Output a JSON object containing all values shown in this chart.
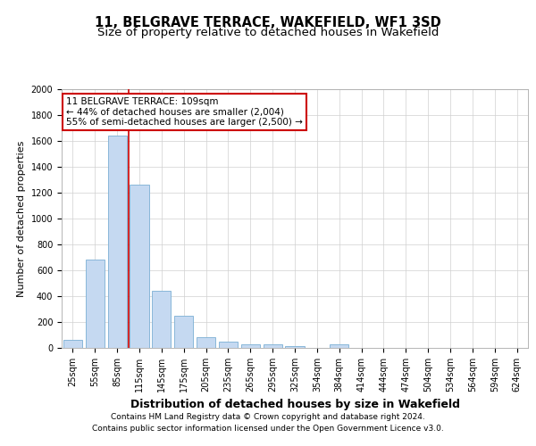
{
  "title": "11, BELGRAVE TERRACE, WAKEFIELD, WF1 3SD",
  "subtitle": "Size of property relative to detached houses in Wakefield",
  "xlabel": "Distribution of detached houses by size in Wakefield",
  "ylabel": "Number of detached properties",
  "categories": [
    "25sqm",
    "55sqm",
    "85sqm",
    "115sqm",
    "145sqm",
    "175sqm",
    "205sqm",
    "235sqm",
    "265sqm",
    "295sqm",
    "325sqm",
    "354sqm",
    "384sqm",
    "414sqm",
    "444sqm",
    "474sqm",
    "504sqm",
    "534sqm",
    "564sqm",
    "594sqm",
    "624sqm"
  ],
  "values": [
    60,
    680,
    1640,
    1260,
    440,
    250,
    80,
    45,
    30,
    25,
    15,
    0,
    25,
    0,
    0,
    0,
    0,
    0,
    0,
    0,
    0
  ],
  "bar_color": "#c5d9f1",
  "bar_edgecolor": "#7bafd4",
  "vline_color": "#cc0000",
  "vline_x_index": 2.5,
  "annotation_text": "11 BELGRAVE TERRACE: 109sqm\n← 44% of detached houses are smaller (2,004)\n55% of semi-detached houses are larger (2,500) →",
  "annotation_box_color": "#ffffff",
  "annotation_box_edgecolor": "#cc0000",
  "ylim": [
    0,
    2000
  ],
  "yticks": [
    0,
    200,
    400,
    600,
    800,
    1000,
    1200,
    1400,
    1600,
    1800,
    2000
  ],
  "background_color": "#ffffff",
  "grid_color": "#d0d0d0",
  "footer_line1": "Contains HM Land Registry data © Crown copyright and database right 2024.",
  "footer_line2": "Contains public sector information licensed under the Open Government Licence v3.0.",
  "title_fontsize": 10.5,
  "subtitle_fontsize": 9.5,
  "ylabel_fontsize": 8,
  "xlabel_fontsize": 9,
  "annotation_fontsize": 7.5,
  "tick_fontsize": 7,
  "footer_fontsize": 6.5
}
